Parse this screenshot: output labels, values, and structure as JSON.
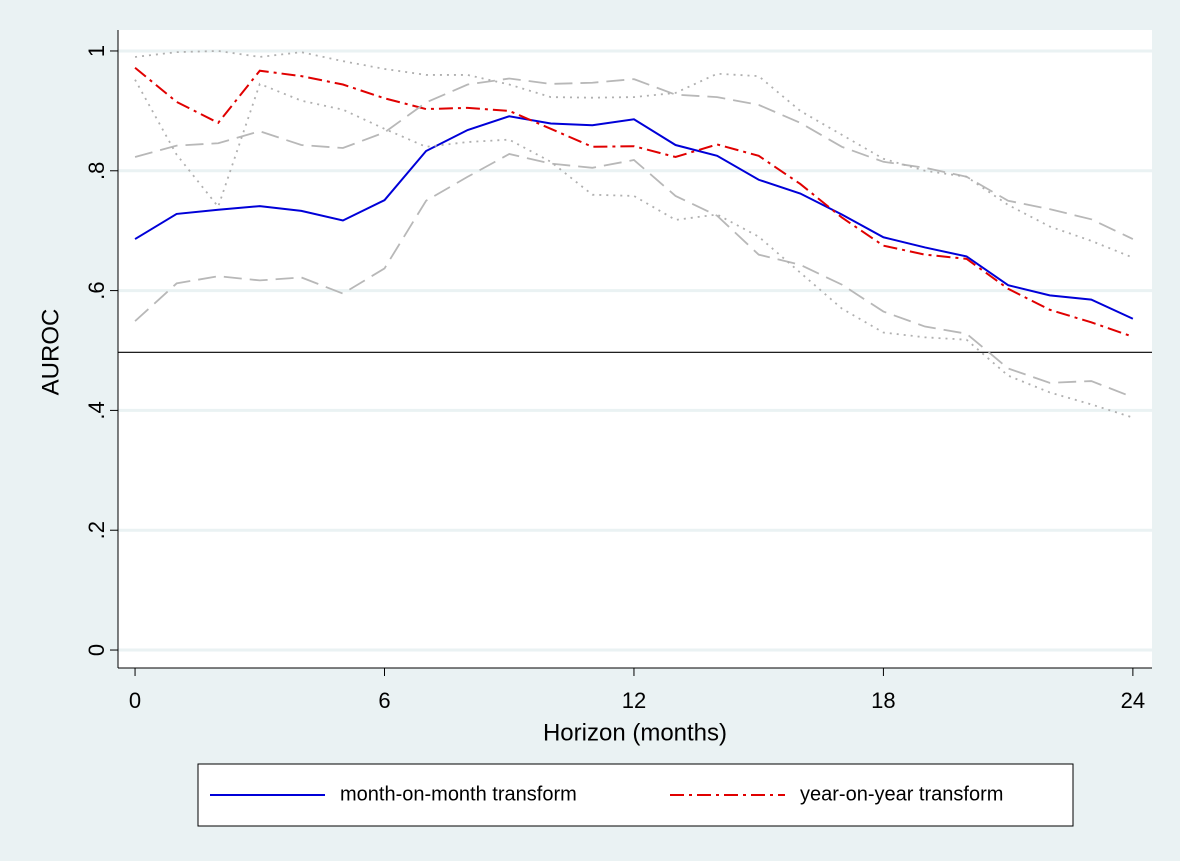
{
  "chart_data": {
    "type": "line",
    "x_label": "Horizon (months)",
    "y_label": "AUROC",
    "x": [
      0,
      1,
      2,
      3,
      4,
      5,
      6,
      7,
      8,
      9,
      10,
      11,
      12,
      13,
      14,
      15,
      16,
      17,
      18,
      19,
      20,
      21,
      22,
      23,
      24
    ],
    "series": [
      {
        "name": "month-on-month transform",
        "color": "#0000d8",
        "style": "solid",
        "values": [
          0.686,
          0.728,
          0.735,
          0.741,
          0.733,
          0.717,
          0.751,
          0.833,
          0.868,
          0.891,
          0.879,
          0.876,
          0.886,
          0.843,
          0.825,
          0.785,
          0.762,
          0.727,
          0.689,
          0.672,
          0.657,
          0.609,
          0.592,
          0.585,
          0.553
        ]
      },
      {
        "name": "year-on-year transform",
        "color": "#e00000",
        "style": "dashdot",
        "values": [
          0.972,
          0.915,
          0.88,
          0.967,
          0.958,
          0.944,
          0.921,
          0.903,
          0.905,
          0.9,
          0.87,
          0.84,
          0.841,
          0.823,
          0.844,
          0.825,
          0.778,
          0.722,
          0.675,
          0.66,
          0.653,
          0.603,
          0.568,
          0.547,
          0.523
        ]
      },
      {
        "color": "#b8b8b8",
        "style": "dash",
        "values": [
          0.823,
          0.842,
          0.846,
          0.866,
          0.843,
          0.838,
          0.864,
          0.914,
          0.944,
          0.954,
          0.945,
          0.947,
          0.953,
          0.927,
          0.923,
          0.91,
          0.88,
          0.84,
          0.815,
          0.805,
          0.79,
          0.75,
          0.736,
          0.719,
          0.686
        ]
      },
      {
        "color": "#b8b8b8",
        "style": "dash",
        "values": [
          0.549,
          0.612,
          0.624,
          0.617,
          0.622,
          0.595,
          0.637,
          0.75,
          0.79,
          0.828,
          0.812,
          0.805,
          0.818,
          0.758,
          0.725,
          0.66,
          0.643,
          0.61,
          0.565,
          0.54,
          0.528,
          0.47,
          0.446,
          0.449,
          0.422
        ]
      },
      {
        "color": "#b0b0b0",
        "style": "dot",
        "values": [
          0.99,
          0.998,
          1.0,
          0.99,
          0.998,
          0.983,
          0.97,
          0.96,
          0.96,
          0.944,
          0.923,
          0.922,
          0.923,
          0.93,
          0.962,
          0.958,
          0.9,
          0.86,
          0.82,
          0.8,
          0.79,
          0.743,
          0.707,
          0.683,
          0.655
        ]
      },
      {
        "color": "#b0b0b0",
        "style": "dot",
        "values": [
          0.952,
          0.827,
          0.74,
          0.945,
          0.917,
          0.902,
          0.87,
          0.84,
          0.848,
          0.852,
          0.815,
          0.76,
          0.758,
          0.718,
          0.727,
          0.69,
          0.63,
          0.57,
          0.53,
          0.522,
          0.518,
          0.458,
          0.43,
          0.41,
          0.388
        ]
      }
    ],
    "reference_line": 0.497,
    "xlim": [
      -0.41,
      24.46
    ],
    "xticks": [
      0,
      6,
      12,
      18,
      24
    ],
    "ylim": [
      -0.03,
      1.035
    ],
    "yticks": [
      0,
      {
        "value": 0.2,
        "label": ".2"
      },
      {
        "value": 0.4,
        "label": ".4"
      },
      {
        "value": 0.6,
        "label": ".6"
      },
      {
        "value": 0.8,
        "label": ".8"
      },
      1
    ],
    "grid": true,
    "legend": "bottom"
  }
}
